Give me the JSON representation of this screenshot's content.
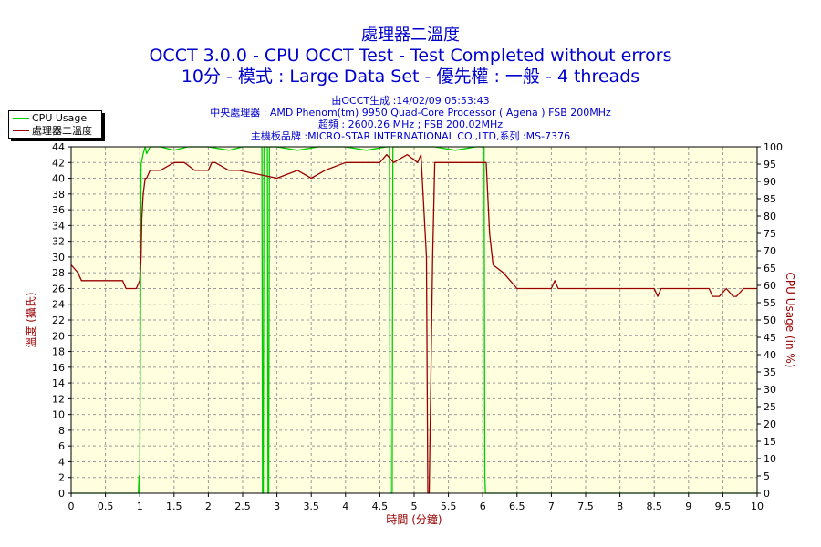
{
  "chart_data": {
    "type": "line",
    "title": "處理器二溫度",
    "subtitle": "OCCT 3.0.0 - CPU OCCT Test - Test Completed without errors",
    "subtitle2": "10分 - 模式 : Large Data Set - 優先權 : 一般 - 4 threads",
    "info_lines": [
      "由OCCT生成 :14/02/09 05:53:43",
      "中央處理器 : AMD Phenom(tm) 9950 Quad-Core Processor ( Agena ) FSB 200MHz",
      "超頻 : 2600.26 MHz ; FSB 200.02MHz",
      "主機板品牌 :MICRO-STAR INTERNATIONAL CO.,LTD,系列 :MS-7376"
    ],
    "xlabel": "時間 (分鐘)",
    "ylabel": "溫度 (攝氏)",
    "ylabel2": "CPU Usage (in %)",
    "xlim": [
      0,
      10
    ],
    "ylim": [
      0,
      44
    ],
    "ylim2": [
      0,
      100
    ],
    "x_ticks": [
      "0",
      "0.5",
      "1",
      "1.5",
      "2",
      "2.5",
      "3",
      "3.5",
      "4",
      "4.5",
      "5",
      "5.5",
      "6",
      "6.5",
      "7",
      "7.5",
      "8",
      "8.5",
      "9",
      "9.5",
      "10"
    ],
    "y_ticks": [
      "0",
      "2",
      "4",
      "6",
      "8",
      "10",
      "12",
      "14",
      "16",
      "18",
      "20",
      "22",
      "24",
      "26",
      "28",
      "30",
      "32",
      "34",
      "36",
      "38",
      "40",
      "42",
      "44"
    ],
    "y2_ticks": [
      "0",
      "5",
      "10",
      "15",
      "20",
      "25",
      "30",
      "35",
      "40",
      "45",
      "50",
      "55",
      "60",
      "65",
      "70",
      "75",
      "80",
      "85",
      "90",
      "95",
      "100"
    ],
    "grid": true,
    "legend_position": "top-left",
    "series": [
      {
        "name": "CPU Usage",
        "axis": "right",
        "color": "#00cc00",
        "x": [
          0,
          0.98,
          0.99,
          1.0,
          1.02,
          1.05,
          1.08,
          1.1,
          1.15,
          1.3,
          1.5,
          1.7,
          2.0,
          2.3,
          2.5,
          2.78,
          2.79,
          2.8,
          2.81,
          2.86,
          2.87,
          2.88,
          2.89,
          3.0,
          3.3,
          3.6,
          4.0,
          4.3,
          4.6,
          4.64,
          4.65,
          4.66,
          4.67,
          4.68,
          4.69,
          4.7,
          5.0,
          5.3,
          5.6,
          5.9,
          6.0,
          6.02,
          6.03,
          6.04,
          10
        ],
        "y": [
          0,
          0,
          5,
          0,
          95,
          98,
          100,
          98,
          100,
          100,
          99,
          100,
          100,
          99,
          100,
          100,
          0,
          0,
          100,
          100,
          0,
          0,
          100,
          100,
          99,
          100,
          100,
          99,
          100,
          100,
          0,
          0,
          0,
          0,
          100,
          100,
          100,
          100,
          99,
          100,
          100,
          100,
          5,
          0,
          0
        ]
      },
      {
        "name": "處理器二溫度",
        "axis": "left",
        "color": "#990000",
        "x": [
          0,
          0.1,
          0.15,
          0.75,
          0.8,
          0.95,
          1.0,
          1.02,
          1.03,
          1.05,
          1.08,
          1.1,
          1.15,
          1.2,
          1.3,
          1.5,
          1.65,
          1.8,
          2.0,
          2.05,
          2.1,
          2.3,
          2.35,
          2.45,
          3.0,
          3.3,
          3.5,
          3.7,
          4.0,
          4.5,
          4.6,
          4.7,
          4.9,
          5.05,
          5.1,
          5.18,
          5.2,
          5.22,
          5.27,
          5.3,
          5.6,
          5.65,
          5.9,
          6.05,
          6.1,
          6.15,
          6.3,
          6.4,
          6.5,
          7.0,
          7.05,
          7.1,
          8.5,
          8.55,
          8.6,
          9.3,
          9.35,
          9.45,
          9.55,
          9.65,
          9.7,
          9.8,
          10
        ],
        "y": [
          29,
          28,
          27,
          27,
          26,
          26,
          27,
          30,
          35,
          38,
          40,
          40,
          41,
          41,
          41,
          42,
          42,
          41,
          41,
          42,
          42,
          41,
          41,
          41,
          40,
          41,
          40,
          41,
          42,
          42,
          43,
          42,
          43,
          42,
          43,
          30,
          0,
          0,
          30,
          42,
          42,
          42,
          42,
          42,
          33,
          29,
          28,
          27,
          26,
          26,
          27,
          26,
          26,
          25,
          26,
          26,
          25,
          25,
          26,
          25,
          25,
          26,
          26
        ]
      }
    ]
  }
}
